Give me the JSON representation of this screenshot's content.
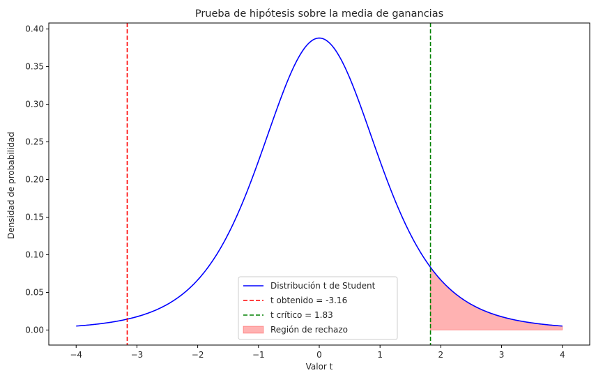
{
  "chart_data": {
    "type": "line",
    "title": "Prueba de hipótesis sobre la media de ganancias",
    "xlabel": "Valor t",
    "ylabel": "Densidad de probabilidad",
    "xlim": [
      -4.45,
      4.45
    ],
    "ylim": [
      -0.02,
      0.408
    ],
    "xticks": [
      -4,
      -3,
      -2,
      -1,
      0,
      1,
      2,
      3,
      4
    ],
    "xtick_labels": [
      "−4",
      "−3",
      "−2",
      "−1",
      "0",
      "1",
      "2",
      "3",
      "4"
    ],
    "yticks": [
      0.0,
      0.05,
      0.1,
      0.15,
      0.2,
      0.25,
      0.3,
      0.35,
      0.4
    ],
    "ytick_labels": [
      "0.00",
      "0.05",
      "0.10",
      "0.15",
      "0.20",
      "0.25",
      "0.30",
      "0.35",
      "0.40"
    ],
    "grid": false,
    "legend_position": "lower center",
    "series": [
      {
        "name": "Distribución t de Student",
        "color": "#0000ff",
        "style": "solid",
        "x": [
          -4.0,
          -3.75,
          -3.5,
          -3.25,
          -3.0,
          -2.75,
          -2.5,
          -2.25,
          -2.0,
          -1.75,
          -1.5,
          -1.25,
          -1.0,
          -0.75,
          -0.5,
          -0.25,
          0.0,
          0.25,
          0.5,
          0.75,
          1.0,
          1.25,
          1.5,
          1.75,
          2.0,
          2.25,
          2.5,
          2.75,
          3.0,
          3.25,
          3.5,
          3.75,
          4.0
        ],
        "y": [
          0.0028,
          0.0039,
          0.0055,
          0.0078,
          0.0114,
          0.0167,
          0.0246,
          0.0363,
          0.0531,
          0.0766,
          0.1077,
          0.1464,
          0.1913,
          0.2524,
          0.3257,
          0.3716,
          0.388,
          0.3716,
          0.3257,
          0.2524,
          0.1913,
          0.1464,
          0.1077,
          0.0766,
          0.0531,
          0.0363,
          0.0246,
          0.0167,
          0.0114,
          0.0078,
          0.0055,
          0.0039,
          0.0028
        ]
      },
      {
        "name": "t obtenido = -3.16",
        "color": "#ff0000",
        "style": "dashed",
        "vline_x": -3.16
      },
      {
        "name": "t crítico = 1.83",
        "color": "#008000",
        "style": "dashed",
        "vline_x": 1.83
      },
      {
        "name": "Región de rechazo",
        "color": "#ff0000",
        "style": "fill",
        "fill_from_x": 1.83,
        "fill_to_x": 4.0
      }
    ]
  }
}
